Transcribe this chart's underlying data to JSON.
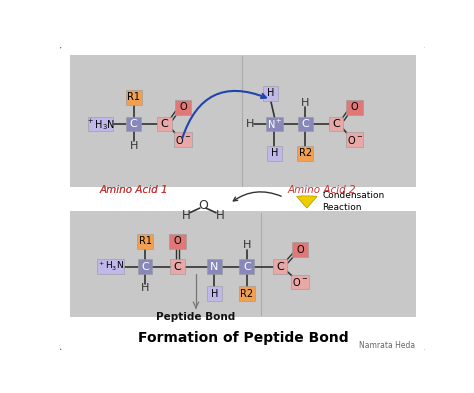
{
  "title": "Formation of Peptide Bond",
  "subtitle": "Peptide Bond",
  "author": "Namrata Heda",
  "label_color": "#cc3333",
  "condensation_label": "Condensation\nReaction",
  "col_purple_light": "#c0b8e8",
  "col_purple_dark": "#8888bb",
  "col_orange": "#f0a050",
  "col_pink_dark": "#e07878",
  "col_pink_light": "#e8a8a8",
  "col_blue_n": "#8888bb",
  "col_panel": "#c8c8c8",
  "col_bg": "#ffffff"
}
